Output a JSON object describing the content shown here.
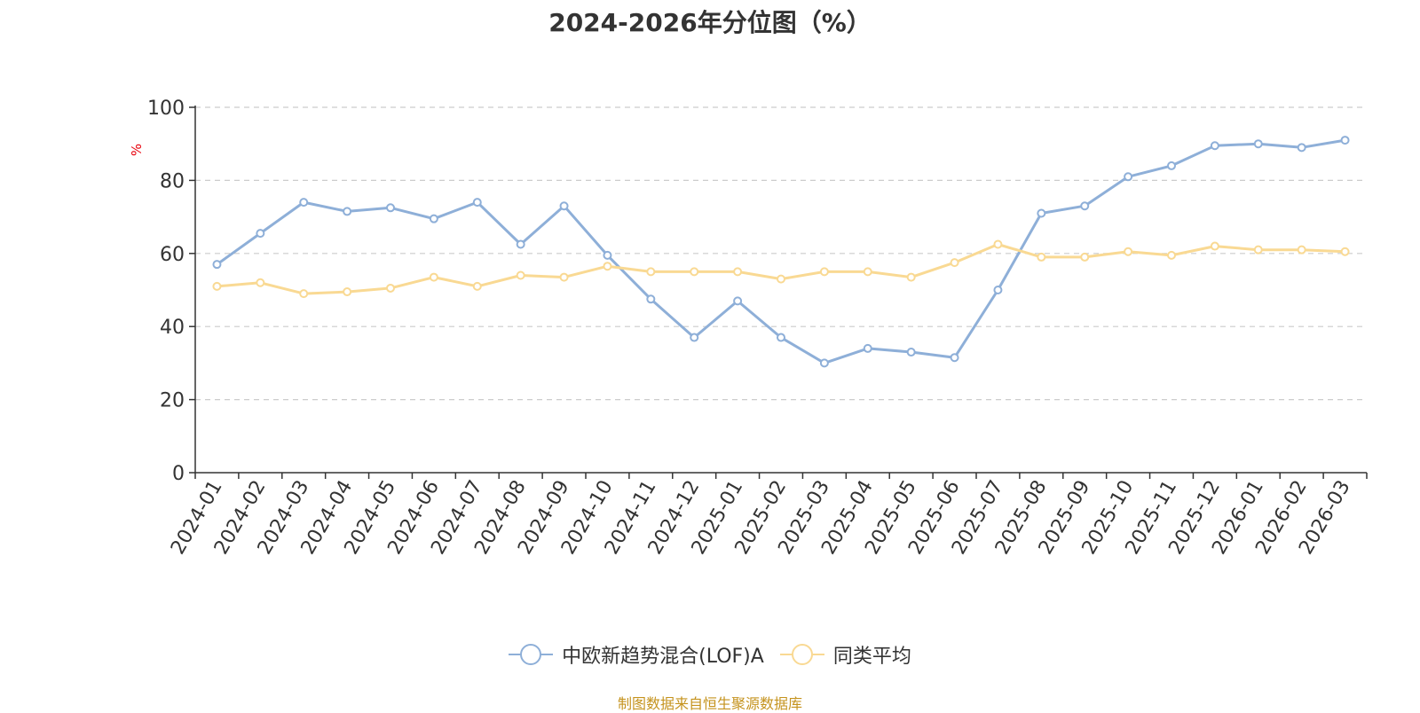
{
  "title": "2024-2026年分位图（%）",
  "source_note": "制图数据来自恒生聚源数据库",
  "chart_data": {
    "type": "line",
    "title": "2024-2026年分位图（%）",
    "xlabel": "",
    "ylabel": "%",
    "ylim": [
      0,
      100
    ],
    "yticks": [
      0,
      20,
      40,
      60,
      80,
      100
    ],
    "grid": true,
    "legend_position": "bottom",
    "categories": [
      "2024-01",
      "2024-02",
      "2024-03",
      "2024-04",
      "2024-05",
      "2024-06",
      "2024-07",
      "2024-08",
      "2024-09",
      "2024-10",
      "2024-11",
      "2024-12",
      "2025-01",
      "2025-02",
      "2025-03",
      "2025-04",
      "2025-05",
      "2025-06",
      "2025-07",
      "2025-08",
      "2025-09",
      "2025-10",
      "2025-11",
      "2025-12",
      "2026-01",
      "2026-02",
      "2026-03"
    ],
    "series": [
      {
        "name": "中欧新趋势混合(LOF)A",
        "color": "#8eafd8",
        "values": [
          57,
          65.5,
          74,
          71.5,
          72.5,
          69.5,
          74,
          62.5,
          73,
          59.5,
          47.5,
          37,
          47,
          37,
          30,
          34,
          33,
          31.5,
          50,
          71,
          73,
          81,
          84,
          89.5,
          90,
          89,
          91
        ]
      },
      {
        "name": "同类平均",
        "color": "#f9d993",
        "values": [
          51,
          52,
          49,
          49.5,
          50.5,
          53.5,
          51,
          54,
          53.5,
          56.5,
          55,
          55,
          55,
          53,
          55,
          55,
          53.5,
          57.5,
          62.5,
          59,
          59,
          60.5,
          59.5,
          62,
          61,
          61,
          60.5
        ]
      }
    ]
  }
}
